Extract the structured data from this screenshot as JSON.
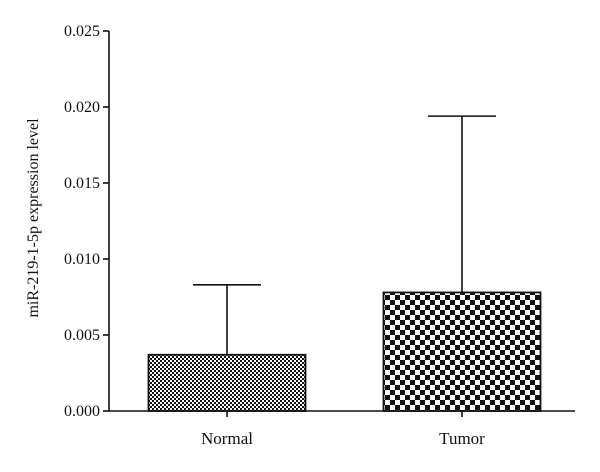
{
  "chart_data": {
    "type": "bar",
    "title": "",
    "xlabel": "",
    "ylabel": "miR-219-1-5p expression level",
    "categories": [
      "Normal",
      "Tumor"
    ],
    "values": [
      0.0037,
      0.0078
    ],
    "error_upper": [
      0.0083,
      0.0194
    ],
    "ylim": [
      0,
      0.025
    ],
    "yticks": [
      0.0,
      0.005,
      0.01,
      0.015,
      0.02,
      0.025
    ],
    "ytick_labels": [
      "0.000",
      "0.005",
      "0.010",
      "0.015",
      "0.020",
      "0.025"
    ],
    "bar_patterns": [
      "fine-checker",
      "coarse-checker"
    ],
    "grid": false,
    "legend": "none",
    "colors": {
      "ink": "#111111",
      "background": "#ffffff"
    }
  }
}
